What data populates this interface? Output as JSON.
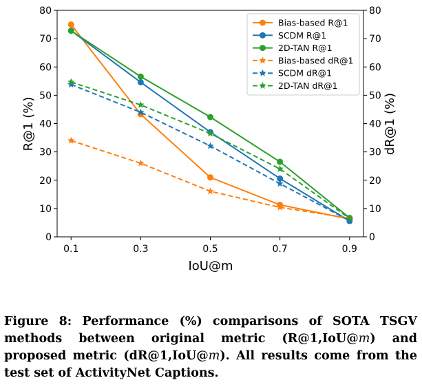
{
  "chart_data": {
    "type": "line",
    "x": [
      0.1,
      0.3,
      0.5,
      0.7,
      0.9
    ],
    "x_tick_labels": [
      "0.1",
      "0.3",
      "0.5",
      "0.7",
      "0.9"
    ],
    "xlabel": "IoU@m",
    "ylabel_left": "R@1 (%)",
    "ylabel_right": "dR@1 (%)",
    "ylim": [
      0,
      80
    ],
    "y_ticks": [
      0,
      10,
      20,
      30,
      40,
      50,
      60,
      70,
      80
    ],
    "grid": false,
    "legend_position": "top-right",
    "series": [
      {
        "name": "Bias-based R@1",
        "axis": "left",
        "style": "solid",
        "marker": "circle",
        "color": "#ff7f0e",
        "values": [
          75.0,
          43.3,
          21.0,
          11.3,
          6.3
        ]
      },
      {
        "name": "SCDM R@1",
        "axis": "left",
        "style": "solid",
        "marker": "circle",
        "color": "#1f77b4",
        "values": [
          72.8,
          54.6,
          37.0,
          20.6,
          5.6
        ]
      },
      {
        "name": "2D-TAN R@1",
        "axis": "left",
        "style": "solid",
        "marker": "circle",
        "color": "#2ca02c",
        "values": [
          72.8,
          56.6,
          42.3,
          26.5,
          6.7
        ]
      },
      {
        "name": "Bias-based dR@1",
        "axis": "right",
        "style": "dashed",
        "marker": "star",
        "color": "#ff7f0e",
        "values": [
          34.0,
          26.0,
          16.1,
          10.4,
          6.6
        ]
      },
      {
        "name": "SCDM dR@1",
        "axis": "right",
        "style": "dashed",
        "marker": "star",
        "color": "#1f77b4",
        "values": [
          53.8,
          44.0,
          32.1,
          18.8,
          5.7
        ]
      },
      {
        "name": "2D-TAN dR@1",
        "axis": "right",
        "style": "dashed",
        "marker": "star",
        "color": "#2ca02c",
        "values": [
          54.7,
          46.6,
          36.5,
          24.0,
          6.5
        ]
      }
    ]
  },
  "caption": {
    "label": "Figure 8:",
    "text_1": " Performance (%) comparisons of SOTA TSGV methods between original metric (R@1,IoU@",
    "m1": "m",
    "text_2": ") and proposed metric (dR@1,IoU@",
    "m2": "m",
    "text_3": "). All results come from the test set of ActivityNet Captions."
  }
}
